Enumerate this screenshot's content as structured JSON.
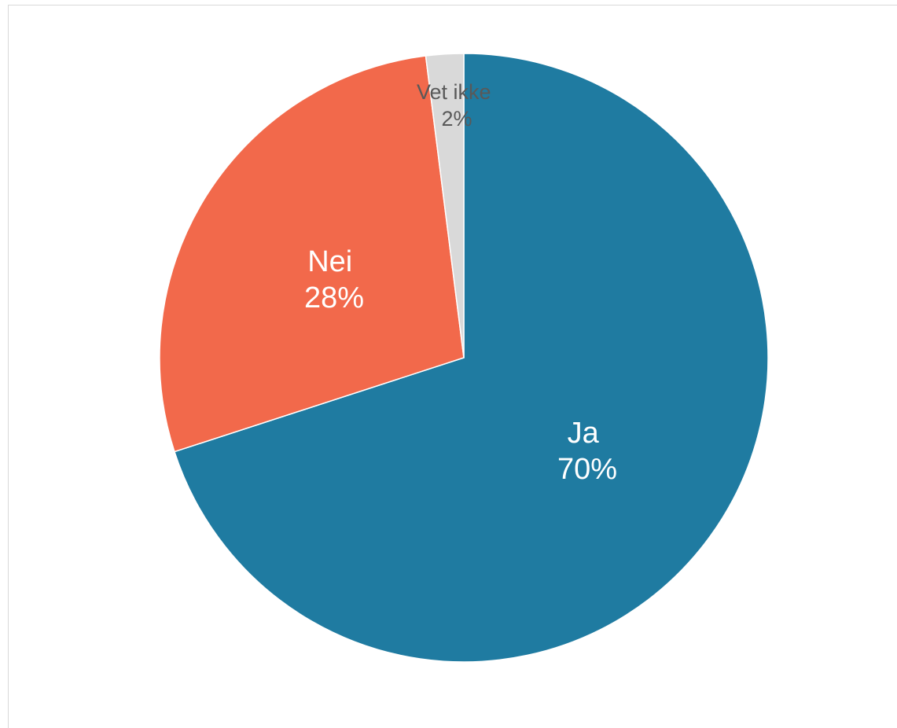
{
  "chart_data": {
    "type": "pie",
    "title": "",
    "slices": [
      {
        "label": "Ja",
        "value": 70,
        "display": "70%",
        "color": "#1f7ba1",
        "label_color": "#ffffff"
      },
      {
        "label": "Nei",
        "value": 28,
        "display": "28%",
        "color": "#f2694b",
        "label_color": "#ffffff"
      },
      {
        "label": "Vet ikke",
        "value": 2,
        "display": "2%",
        "color": "#d9d9d9",
        "label_color": "#595959"
      }
    ],
    "start_angle_deg": 0,
    "direction": "clockwise",
    "legend": "none"
  }
}
